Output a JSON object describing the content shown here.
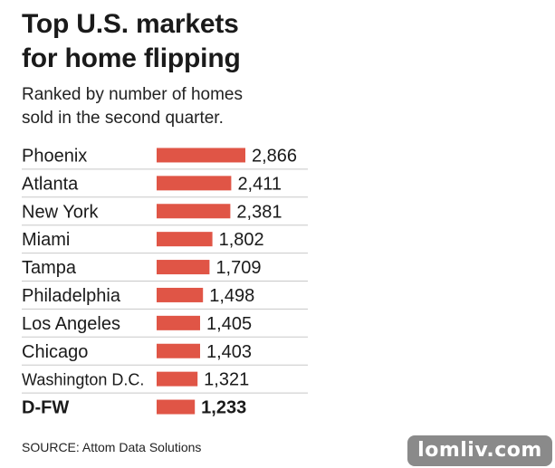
{
  "header": {
    "title_line1": "Top U.S. markets",
    "title_line2": "for home flipping",
    "subtitle_line1": "Ranked by number of homes",
    "subtitle_line2": "sold in the second quarter."
  },
  "footer": {
    "source": "SOURCE: Attom Data Solutions",
    "watermark": "lomliv.com"
  },
  "colors": {
    "bar": "#e05546",
    "divider": "#c8c8c8",
    "text": "#1a1a1a"
  },
  "chart_data": {
    "type": "bar",
    "orientation": "horizontal",
    "title": "Top U.S. markets for home flipping",
    "subtitle": "Ranked by number of homes sold in the second quarter.",
    "categories": [
      "Phoenix",
      "Atlanta",
      "New York",
      "Miami",
      "Tampa",
      "Philadelphia",
      "Los Angeles",
      "Chicago",
      "Washington D.C.",
      "D-FW"
    ],
    "values": [
      2866,
      2411,
      2381,
      1802,
      1709,
      1498,
      1405,
      1403,
      1321,
      1233
    ],
    "value_labels": [
      "2,866",
      "2,411",
      "2,381",
      "1,802",
      "1,709",
      "1,498",
      "1,405",
      "1,403",
      "1,321",
      "1,233"
    ],
    "highlighted": "D-FW",
    "xlim": [
      0,
      2866
    ],
    "grid": false,
    "legend": "none"
  }
}
